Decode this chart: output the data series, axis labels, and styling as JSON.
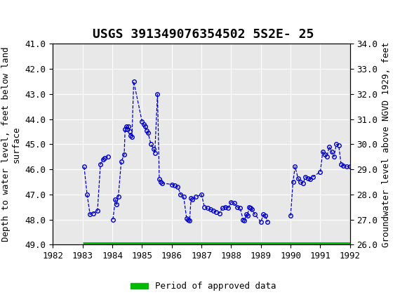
{
  "title": "USGS 391349076354502 5S2E- 25",
  "ylabel_left": "Depth to water level, feet below land\nsurface",
  "ylabel_right": "Groundwater level above NGVD 1929, feet",
  "xlim": [
    1982,
    1992
  ],
  "ylim_left": [
    49.0,
    41.0
  ],
  "ylim_right": [
    26.0,
    34.0
  ],
  "xticks": [
    1982,
    1983,
    1984,
    1985,
    1986,
    1987,
    1988,
    1989,
    1990,
    1991,
    1992
  ],
  "yticks_left": [
    41.0,
    42.0,
    43.0,
    44.0,
    45.0,
    46.0,
    47.0,
    48.0,
    49.0
  ],
  "yticks_right": [
    34.0,
    33.0,
    32.0,
    31.0,
    30.0,
    29.0,
    28.0,
    27.0,
    26.0
  ],
  "header_color": "#1a6b3c",
  "line_color": "#0000cc",
  "marker_color": "#0000cc",
  "approved_color": "#00bb00",
  "plot_bg_color": "#e8e8e8",
  "legend_label": "Period of approved data",
  "title_fontsize": 13,
  "axis_fontsize": 9,
  "tick_fontsize": 9,
  "segments": [
    [
      [
        1983.05,
        45.9
      ],
      [
        1983.15,
        47.0
      ],
      [
        1983.25,
        47.8
      ],
      [
        1983.35,
        47.75
      ],
      [
        1983.5,
        47.65
      ],
      [
        1983.6,
        45.8
      ],
      [
        1983.68,
        45.6
      ],
      [
        1983.75,
        45.55
      ],
      [
        1983.85,
        45.5
      ]
    ],
    [
      [
        1984.02,
        48.0
      ],
      [
        1984.1,
        47.2
      ],
      [
        1984.15,
        47.4
      ],
      [
        1984.2,
        47.1
      ],
      [
        1984.3,
        45.7
      ],
      [
        1984.4,
        45.4
      ],
      [
        1984.43,
        44.4
      ],
      [
        1984.46,
        44.3
      ],
      [
        1984.5,
        44.4
      ],
      [
        1984.55,
        44.3
      ],
      [
        1984.58,
        44.5
      ],
      [
        1984.62,
        44.65
      ],
      [
        1984.66,
        44.7
      ],
      [
        1984.72,
        42.5
      ],
      [
        1985.0,
        44.1
      ],
      [
        1985.05,
        44.2
      ],
      [
        1985.1,
        44.3
      ],
      [
        1985.15,
        44.45
      ],
      [
        1985.2,
        44.55
      ],
      [
        1985.3,
        45.0
      ],
      [
        1985.4,
        45.2
      ],
      [
        1985.43,
        45.35
      ],
      [
        1985.52,
        43.0
      ],
      [
        1985.58,
        46.4
      ],
      [
        1985.62,
        46.5
      ],
      [
        1985.68,
        46.55
      ],
      [
        1986.0,
        46.6
      ],
      [
        1986.1,
        46.65
      ],
      [
        1986.2,
        46.7
      ],
      [
        1986.3,
        47.0
      ],
      [
        1986.4,
        47.1
      ],
      [
        1986.5,
        47.95
      ],
      [
        1986.55,
        48.0
      ],
      [
        1986.6,
        48.05
      ],
      [
        1986.65,
        47.15
      ],
      [
        1986.7,
        47.2
      ],
      [
        1986.8,
        47.1
      ],
      [
        1987.0,
        47.0
      ],
      [
        1987.1,
        47.5
      ],
      [
        1987.2,
        47.55
      ],
      [
        1987.3,
        47.6
      ],
      [
        1987.4,
        47.65
      ],
      [
        1987.5,
        47.7
      ],
      [
        1987.6,
        47.75
      ],
      [
        1987.7,
        47.55
      ],
      [
        1987.8,
        47.5
      ],
      [
        1987.9,
        47.55
      ],
      [
        1988.0,
        47.3
      ],
      [
        1988.1,
        47.35
      ],
      [
        1988.2,
        47.5
      ],
      [
        1988.3,
        47.55
      ],
      [
        1988.4,
        48.0
      ],
      [
        1988.45,
        48.05
      ],
      [
        1988.5,
        47.8
      ],
      [
        1988.55,
        47.85
      ],
      [
        1988.6,
        47.5
      ],
      [
        1988.65,
        47.55
      ],
      [
        1988.7,
        47.6
      ],
      [
        1988.8,
        47.8
      ],
      [
        1989.0,
        48.1
      ],
      [
        1989.08,
        47.8
      ],
      [
        1989.15,
        47.85
      ],
      [
        1989.22,
        48.1
      ]
    ],
    [
      [
        1990.0,
        47.85
      ],
      [
        1990.08,
        46.5
      ],
      [
        1990.15,
        45.9
      ],
      [
        1990.25,
        46.35
      ],
      [
        1990.33,
        46.5
      ],
      [
        1990.42,
        46.55
      ],
      [
        1990.5,
        46.3
      ],
      [
        1990.58,
        46.35
      ],
      [
        1990.67,
        46.4
      ],
      [
        1990.75,
        46.3
      ],
      [
        1991.0,
        46.1
      ],
      [
        1991.08,
        45.3
      ],
      [
        1991.15,
        45.4
      ],
      [
        1991.22,
        45.5
      ],
      [
        1991.3,
        45.1
      ],
      [
        1991.38,
        45.3
      ],
      [
        1991.46,
        45.5
      ],
      [
        1991.54,
        45.0
      ],
      [
        1991.62,
        45.05
      ],
      [
        1991.7,
        45.8
      ],
      [
        1991.78,
        45.85
      ],
      [
        1991.88,
        45.9
      ],
      [
        1992.0,
        45.9
      ]
    ]
  ],
  "approved_x_start": 1983.0,
  "approved_x_end": 1992.0,
  "approved_y": 49.0
}
